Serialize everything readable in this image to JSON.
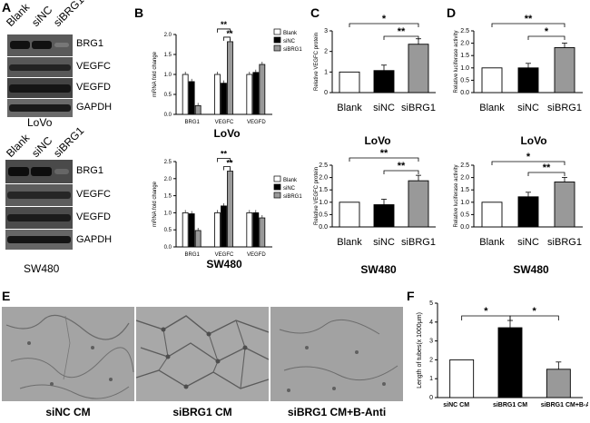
{
  "panels": {
    "A": "A",
    "B": "B",
    "C": "C",
    "D": "D",
    "E": "E",
    "F": "F"
  },
  "blots": {
    "top": {
      "lanes": [
        "Blank",
        "siNC",
        "siBRG1"
      ],
      "bands": [
        "BRG1",
        "VEGFC",
        "VEGFD",
        "GAPDH"
      ],
      "cell": "LoVo"
    },
    "bottom": {
      "lanes": [
        "Blank",
        "siNC",
        "siBRG1"
      ],
      "bands": [
        "BRG1",
        "VEGFC",
        "VEGFD",
        "GAPDH"
      ],
      "cell": "SW480"
    }
  },
  "captions": {
    "B_top": "LoVo",
    "B_bottom": "SW480",
    "C_top": "LoVo",
    "C_bottom": "SW480",
    "D_top": "LoVo",
    "D_bottom": "SW480"
  },
  "micrographs": [
    "siNC CM",
    "siBRG1 CM",
    "siBRG1 CM+B-Anti"
  ],
  "colors": {
    "blank": "#ffffff",
    "sinc": "#000000",
    "sibrg1": "#999999",
    "blot_band": "#202020"
  },
  "chart_data": [
    {
      "id": "B_top",
      "type": "bar",
      "categories": [
        "BRG1",
        "VEGFC",
        "VEGFD"
      ],
      "series": [
        {
          "name": "Blank",
          "values": [
            1.0,
            1.0,
            1.0
          ]
        },
        {
          "name": "siNC",
          "values": [
            0.82,
            0.78,
            1.05
          ]
        },
        {
          "name": "siBRG1",
          "values": [
            0.22,
            1.82,
            1.25
          ]
        }
      ],
      "ylabel": "mRNA fold change",
      "yticks": [
        "0.0",
        "0.5",
        "1.0",
        "1.5",
        "2.0"
      ],
      "ylim": [
        0,
        2.0
      ],
      "annotations": [
        "**",
        "**"
      ],
      "legend": "top-right"
    },
    {
      "id": "B_bottom",
      "type": "bar",
      "categories": [
        "BRG1",
        "VEGFC",
        "VEGFD"
      ],
      "series": [
        {
          "name": "Blank",
          "values": [
            1.0,
            1.0,
            1.0
          ]
        },
        {
          "name": "siNC",
          "values": [
            0.97,
            1.2,
            1.0
          ]
        },
        {
          "name": "siBRG1",
          "values": [
            0.48,
            2.22,
            0.85
          ]
        }
      ],
      "ylabel": "mRNA fold change",
      "yticks": [
        "0.0",
        "0.5",
        "1.0",
        "1.5",
        "2.0",
        "2.5"
      ],
      "ylim": [
        0,
        2.5
      ],
      "annotations": [
        "**",
        "**"
      ],
      "legend": "top-right"
    },
    {
      "id": "C_top",
      "type": "bar",
      "categories": [
        "Blank",
        "siNC",
        "siBRG1"
      ],
      "values": [
        1.0,
        1.07,
        2.35
      ],
      "ylabel": "Relative VEGFC protein",
      "yticks": [
        "0",
        "1",
        "2",
        "3"
      ],
      "ylim": [
        0,
        3
      ],
      "annotations": [
        "*",
        "**"
      ]
    },
    {
      "id": "C_bottom",
      "type": "bar",
      "categories": [
        "Blank",
        "siNC",
        "siBRG1"
      ],
      "values": [
        1.0,
        0.9,
        1.87
      ],
      "ylabel": "Relative VEGFC protein",
      "yticks": [
        "0.0",
        "0.5",
        "1.0",
        "1.5",
        "2.0",
        "2.5"
      ],
      "ylim": [
        0,
        2.5
      ],
      "annotations": [
        "**",
        "**"
      ]
    },
    {
      "id": "D_top",
      "type": "bar",
      "categories": [
        "Blank",
        "siNC",
        "siBRG1"
      ],
      "values": [
        1.0,
        1.0,
        1.82
      ],
      "ylabel": "Relative luciferase activity",
      "yticks": [
        "0.0",
        "0.5",
        "1.0",
        "1.5",
        "2.0",
        "2.5"
      ],
      "ylim": [
        0,
        2.5
      ],
      "annotations": [
        "**",
        "*"
      ]
    },
    {
      "id": "D_bottom",
      "type": "bar",
      "categories": [
        "Blank",
        "siNC",
        "siBRG1"
      ],
      "values": [
        1.0,
        1.22,
        1.82
      ],
      "ylabel": "Relative luciferase activity",
      "yticks": [
        "0.0",
        "0.5",
        "1.0",
        "1.5",
        "2.0",
        "2.5"
      ],
      "ylim": [
        0,
        2.5
      ],
      "annotations": [
        "*",
        "**"
      ]
    },
    {
      "id": "F",
      "type": "bar",
      "categories": [
        "siNC CM",
        "siBRG1 CM",
        "siBRG1 CM+B-Anti"
      ],
      "values": [
        2.0,
        3.7,
        1.5
      ],
      "ylabel": "Length of tubes(x 1000μm)",
      "yticks": [
        "0",
        "1",
        "2",
        "3",
        "4",
        "5"
      ],
      "ylim": [
        0,
        5
      ],
      "annotations": [
        "*",
        "*"
      ]
    }
  ]
}
